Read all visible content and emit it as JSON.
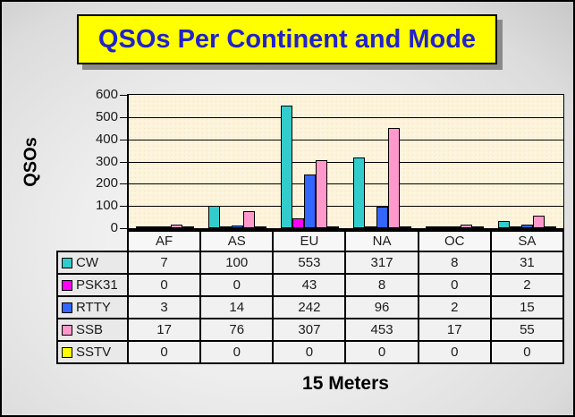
{
  "title": {
    "text": "QSOs Per Continent and Mode",
    "bg_color": "#FFFF00",
    "text_color": "#2222CC"
  },
  "chart_data": {
    "type": "bar",
    "title": "QSOs Per Continent and Mode",
    "categories": [
      "AF",
      "AS",
      "EU",
      "NA",
      "OC",
      "SA"
    ],
    "series": [
      {
        "name": "CW",
        "color": "#33CCCC",
        "values": [
          7,
          100,
          553,
          317,
          8,
          31
        ]
      },
      {
        "name": "PSK31",
        "color": "#FF00FF",
        "values": [
          0,
          0,
          43,
          8,
          0,
          2
        ]
      },
      {
        "name": "RTTY",
        "color": "#3366FF",
        "values": [
          3,
          14,
          242,
          96,
          2,
          15
        ]
      },
      {
        "name": "SSB",
        "color": "#FF99CC",
        "values": [
          17,
          76,
          307,
          453,
          17,
          55
        ]
      },
      {
        "name": "SSTV",
        "color": "#FFFF00",
        "values": [
          0,
          0,
          0,
          0,
          0,
          0
        ]
      }
    ],
    "ylabel": "QSOs",
    "xlabel": "15 Meters",
    "ylim": [
      0,
      600
    ],
    "yticks": [
      600,
      500,
      400,
      300,
      200,
      100,
      0
    ],
    "grid": true,
    "legend_position": "left-of-data-table",
    "plot_bg_color": "#FCF3DA",
    "data_table_shown": true
  }
}
